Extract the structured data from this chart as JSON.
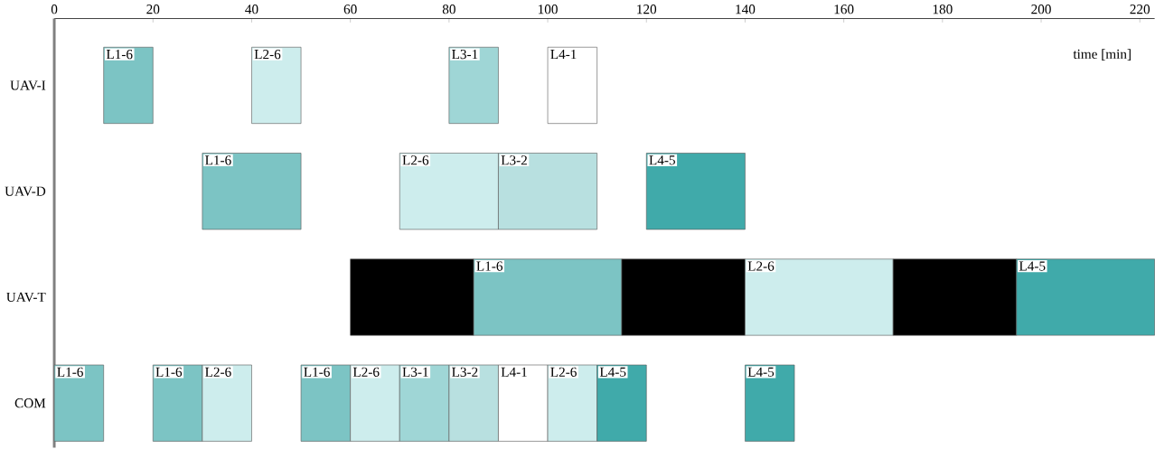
{
  "chart_data": {
    "type": "bar",
    "orientation": "horizontal",
    "xlabel": "time [min]",
    "categories": [
      "UAV-I",
      "UAV-D",
      "UAV-T",
      "COM"
    ],
    "xlim": [
      0,
      223
    ],
    "xticks": [
      0,
      20,
      40,
      60,
      80,
      100,
      120,
      140,
      160,
      180,
      200,
      220
    ],
    "series": [
      {
        "name": "L1-6",
        "color": "#7cc4c4",
        "base": [
          10,
          null,
          null,
          null
        ],
        "values": [
          10,
          null,
          null,
          null
        ]
      },
      {
        "name": "L2-6",
        "color": "#cdeded",
        "base": [
          40,
          null,
          null,
          null
        ],
        "values": [
          10,
          null,
          null,
          null
        ]
      },
      {
        "name": "L3-1",
        "color": "#9fd6d6",
        "base": [
          80,
          null,
          null,
          null
        ],
        "values": [
          10,
          null,
          null,
          null
        ]
      },
      {
        "name": "L4-1",
        "color": "#ffffff",
        "base": [
          100,
          null,
          null,
          null
        ],
        "values": [
          10,
          null,
          null,
          null
        ]
      },
      {
        "name": "L1-6",
        "color": "#7cc4c4",
        "base": [
          null,
          30,
          null,
          null
        ],
        "values": [
          null,
          20,
          null,
          null
        ]
      },
      {
        "name": "L2-6",
        "color": "#cdeded",
        "base": [
          null,
          70,
          null,
          null
        ],
        "values": [
          null,
          20,
          null,
          null
        ]
      },
      {
        "name": "L3-2",
        "color": "#b8e0e0",
        "base": [
          null,
          90,
          null,
          null
        ],
        "values": [
          null,
          20,
          null,
          null
        ]
      },
      {
        "name": "L4-5",
        "color": "#40aaaa",
        "base": [
          null,
          120,
          null,
          null
        ],
        "values": [
          null,
          20,
          null,
          null
        ]
      },
      {
        "color": "#000000",
        "base": [
          null,
          null,
          60,
          null
        ],
        "values": [
          null,
          null,
          25,
          null
        ]
      },
      {
        "name": "L1-6",
        "color": "#7cc4c4",
        "base": [
          null,
          null,
          85,
          null
        ],
        "values": [
          null,
          null,
          30,
          null
        ]
      },
      {
        "color": "#000000",
        "base": [
          null,
          null,
          115,
          null
        ],
        "values": [
          null,
          null,
          25,
          null
        ]
      },
      {
        "name": "L2-6",
        "color": "#cdeded",
        "base": [
          null,
          null,
          140,
          null
        ],
        "values": [
          null,
          null,
          30,
          null
        ]
      },
      {
        "color": "#000000",
        "base": [
          null,
          null,
          170,
          null
        ],
        "values": [
          null,
          null,
          25,
          null
        ]
      },
      {
        "name": "L4-5",
        "color": "#40aaaa",
        "base": [
          null,
          null,
          195,
          null
        ],
        "values": [
          null,
          null,
          28,
          null
        ]
      },
      {
        "name": "L1-6",
        "color": "#7cc4c4",
        "base": [
          null,
          null,
          null,
          0
        ],
        "values": [
          null,
          null,
          null,
          10
        ]
      },
      {
        "name": "L1-6",
        "color": "#7cc4c4",
        "base": [
          null,
          null,
          null,
          20
        ],
        "values": [
          null,
          null,
          null,
          10
        ]
      },
      {
        "name": "L2-6",
        "color": "#cdeded",
        "base": [
          null,
          null,
          null,
          30
        ],
        "values": [
          null,
          null,
          null,
          10
        ]
      },
      {
        "name": "L1-6",
        "color": "#7cc4c4",
        "base": [
          null,
          null,
          null,
          50
        ],
        "values": [
          null,
          null,
          null,
          10
        ]
      },
      {
        "name": "L2-6",
        "color": "#cdeded",
        "base": [
          null,
          null,
          null,
          60
        ],
        "values": [
          null,
          null,
          null,
          10
        ]
      },
      {
        "name": "L3-1",
        "color": "#9fd6d6",
        "base": [
          null,
          null,
          null,
          70
        ],
        "values": [
          null,
          null,
          null,
          10
        ]
      },
      {
        "name": "L3-2",
        "color": "#b8e0e0",
        "base": [
          null,
          null,
          null,
          80
        ],
        "values": [
          null,
          null,
          null,
          10
        ]
      },
      {
        "name": "L4-1",
        "color": "#ffffff",
        "base": [
          null,
          null,
          null,
          90
        ],
        "values": [
          null,
          null,
          null,
          10
        ]
      },
      {
        "name": "L2-6",
        "color": "#cdeded",
        "base": [
          null,
          null,
          null,
          100
        ],
        "values": [
          null,
          null,
          null,
          10
        ]
      },
      {
        "name": "L4-5",
        "color": "#40aaaa",
        "base": [
          null,
          null,
          null,
          110
        ],
        "values": [
          null,
          null,
          null,
          10
        ]
      },
      {
        "name": "L4-5",
        "color": "#40aaaa",
        "base": [
          null,
          null,
          null,
          140
        ],
        "values": [
          null,
          null,
          null,
          10
        ]
      }
    ]
  }
}
